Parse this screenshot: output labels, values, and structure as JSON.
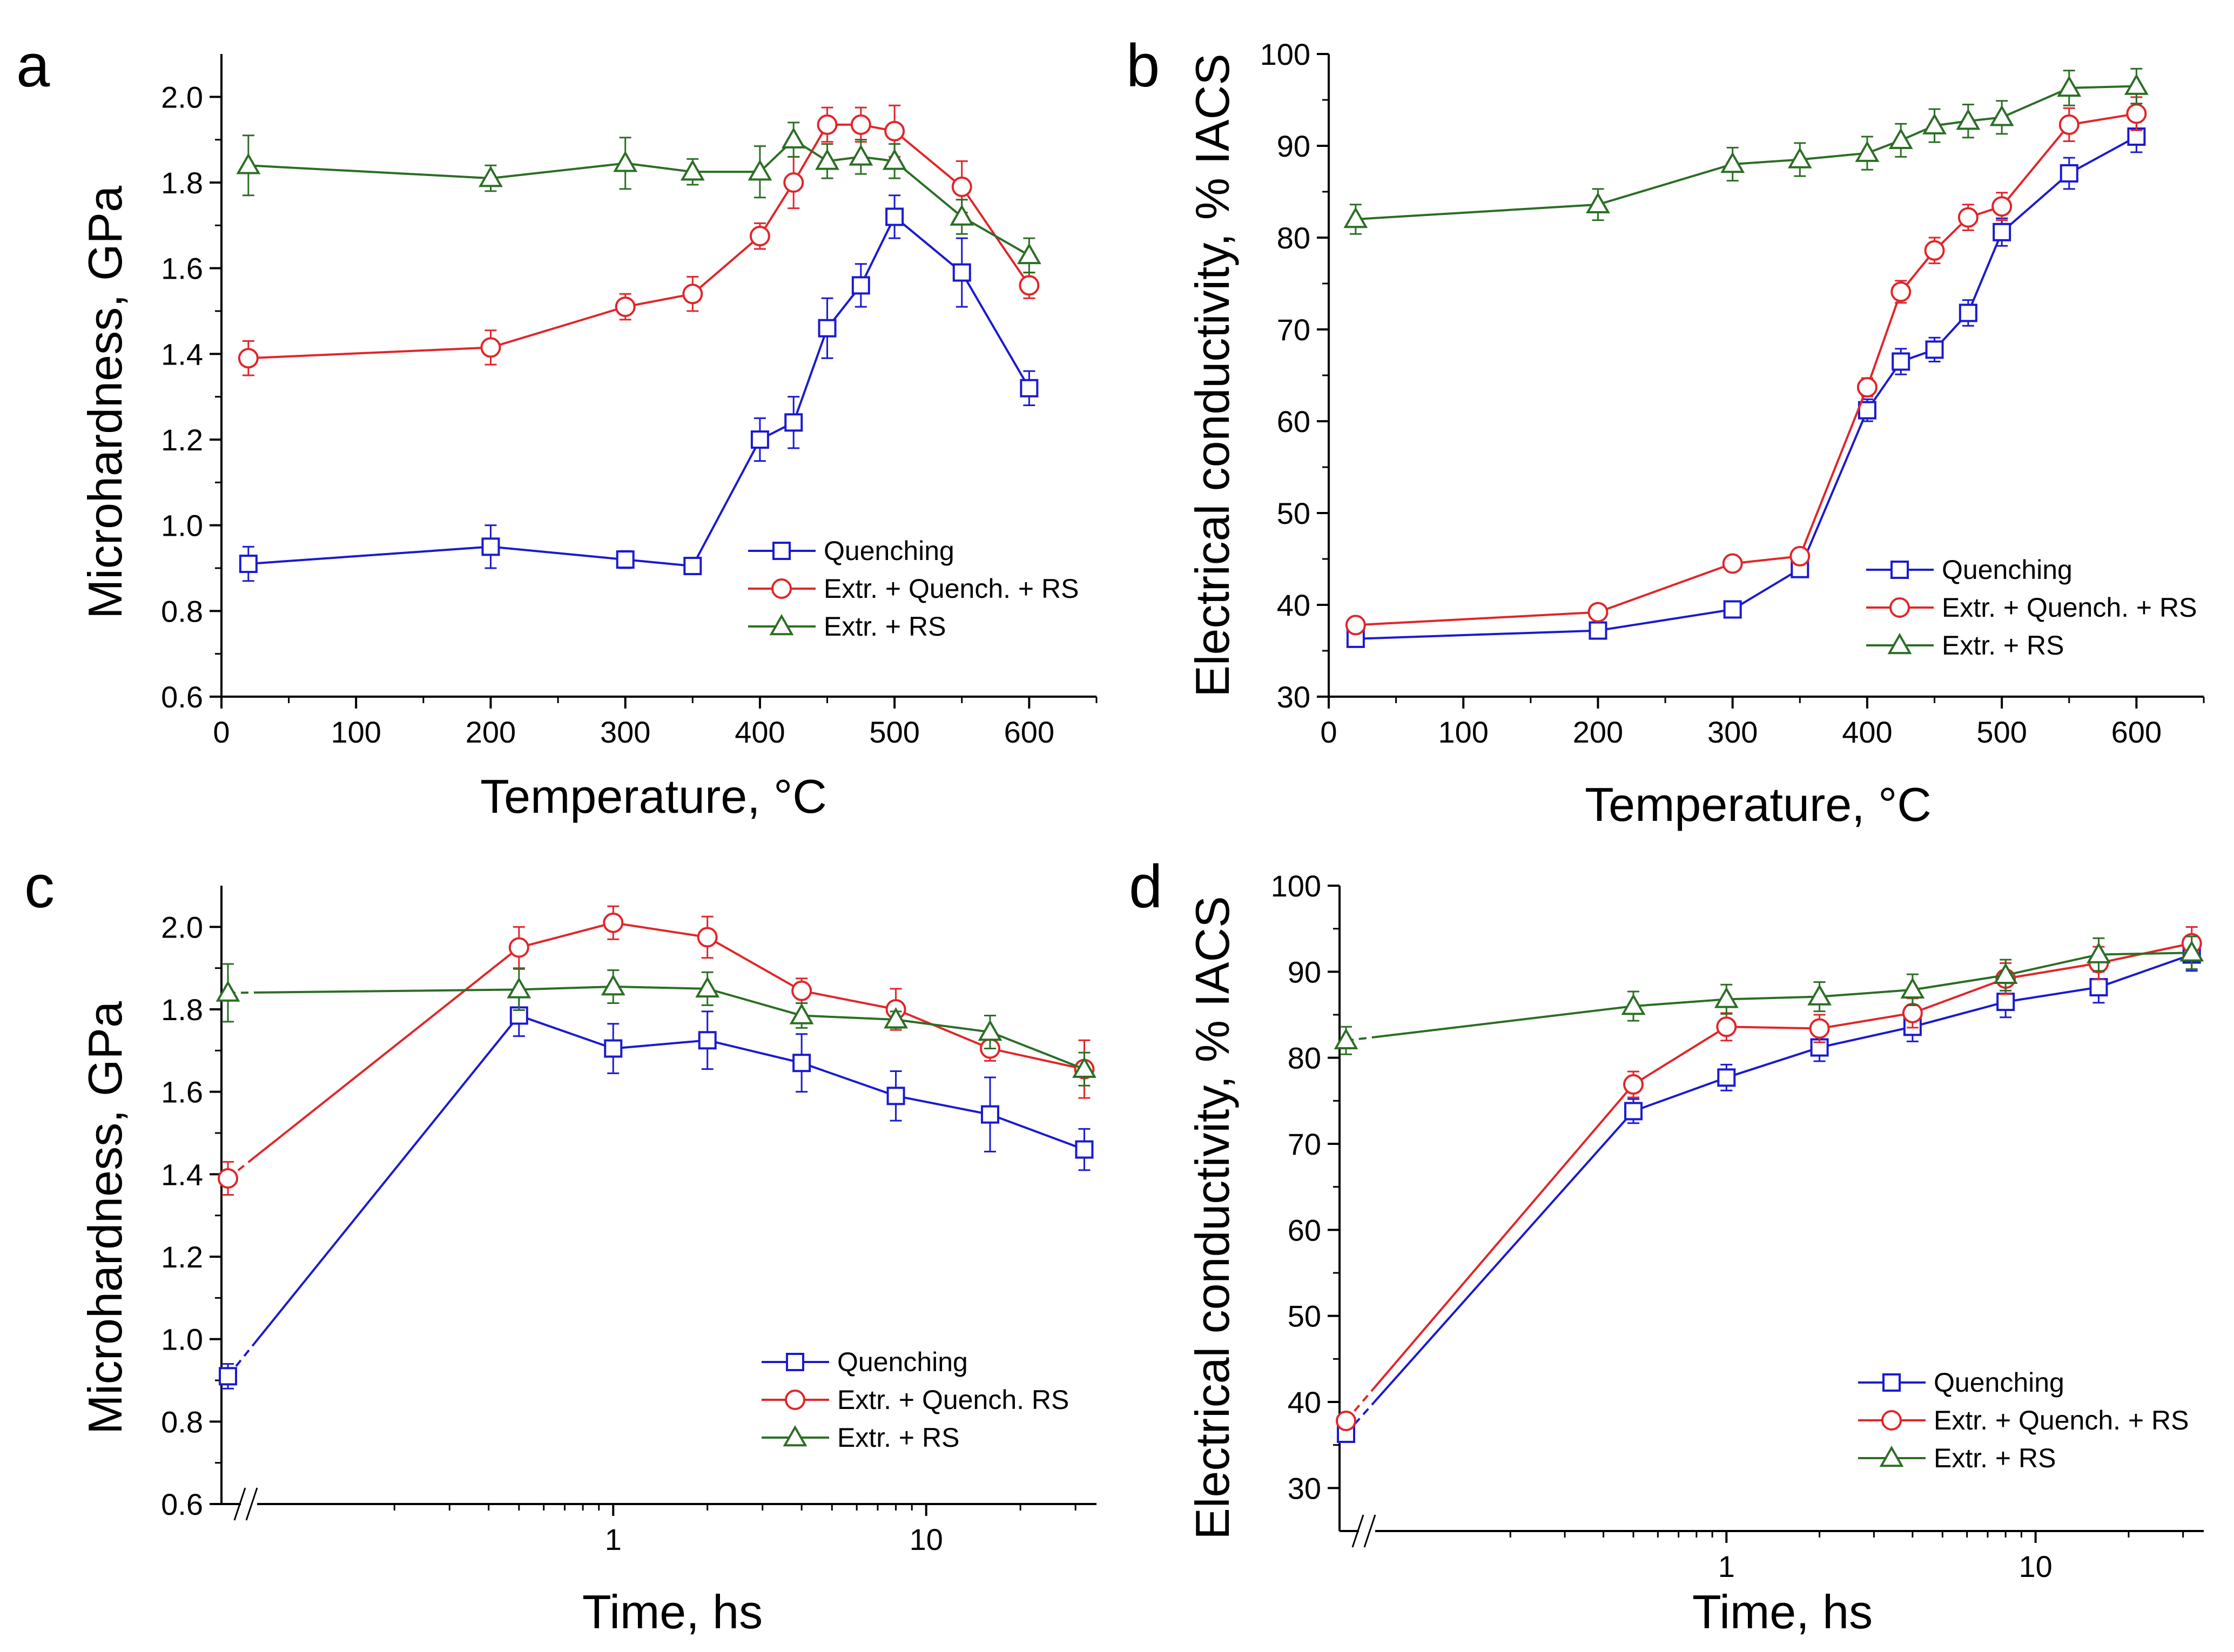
{
  "colors": {
    "quenching": "#1a1ad0",
    "extr_quench_rs": "#e0262a",
    "extr_rs": "#2b6e24",
    "axis": "#000000",
    "background": "#ffffff"
  },
  "chart_data": [
    {
      "panel": "a",
      "type": "line",
      "xscale": "linear",
      "xlabel": "Temperature, °C",
      "ylabel": "Microhardness, GPa",
      "xlim": [
        0,
        650
      ],
      "ylim": [
        0.6,
        2.1
      ],
      "xticks": [
        0,
        100,
        200,
        300,
        400,
        500,
        600
      ],
      "xtick_labels": [
        "0",
        "100",
        "200",
        "300",
        "400",
        "500",
        "600"
      ],
      "yticks": [
        0.6,
        0.8,
        1.0,
        1.2,
        1.4,
        1.6,
        1.8,
        2.0
      ],
      "ytick_labels": [
        "0.6",
        "0.8",
        "1.0",
        "1.2",
        "1.4",
        "1.6",
        "1.8",
        "2.0"
      ],
      "legend_position": "bottom-right",
      "series": [
        {
          "name": "Quenching",
          "key": "quenching",
          "marker": "square",
          "x": [
            20,
            200,
            300,
            350,
            400,
            425,
            450,
            475,
            500,
            550,
            600
          ],
          "y": [
            0.91,
            0.95,
            0.92,
            0.905,
            1.2,
            1.24,
            1.46,
            1.56,
            1.72,
            1.59,
            1.32
          ],
          "err": [
            0.04,
            0.05,
            0.02,
            0.01,
            0.05,
            0.06,
            0.07,
            0.05,
            0.05,
            0.08,
            0.04
          ]
        },
        {
          "name": "Extr. + Quench. + RS",
          "key": "extr_quench_rs",
          "marker": "circle",
          "x": [
            20,
            200,
            300,
            350,
            400,
            425,
            450,
            475,
            500,
            550,
            600
          ],
          "y": [
            1.39,
            1.415,
            1.51,
            1.54,
            1.675,
            1.8,
            1.935,
            1.935,
            1.92,
            1.79,
            1.56
          ],
          "err": [
            0.04,
            0.04,
            0.03,
            0.04,
            0.03,
            0.06,
            0.04,
            0.04,
            0.06,
            0.06,
            0.03
          ]
        },
        {
          "name": "Extr. + RS",
          "key": "extr_rs",
          "marker": "triangle",
          "x": [
            20,
            200,
            300,
            350,
            400,
            425,
            450,
            475,
            500,
            550,
            600
          ],
          "y": [
            1.84,
            1.81,
            1.845,
            1.825,
            1.825,
            1.9,
            1.85,
            1.86,
            1.85,
            1.72,
            1.63
          ],
          "err": [
            0.07,
            0.03,
            0.06,
            0.03,
            0.06,
            0.04,
            0.04,
            0.04,
            0.04,
            0.04,
            0.04
          ]
        }
      ]
    },
    {
      "panel": "b",
      "type": "line",
      "xscale": "linear",
      "xlabel": "Temperature, °C",
      "ylabel": "Electrical conductivity, % IACS",
      "xlim": [
        0,
        650
      ],
      "ylim": [
        30,
        100
      ],
      "xticks": [
        0,
        100,
        200,
        300,
        400,
        500,
        600
      ],
      "xtick_labels": [
        "0",
        "100",
        "200",
        "300",
        "400",
        "500",
        "600"
      ],
      "yticks": [
        30,
        40,
        50,
        60,
        70,
        80,
        90,
        100
      ],
      "ytick_labels": [
        "30",
        "40",
        "50",
        "60",
        "70",
        "80",
        "90",
        "100"
      ],
      "legend_position": "bottom-right",
      "series": [
        {
          "name": "Quenching",
          "key": "quenching",
          "marker": "square",
          "x": [
            20,
            200,
            300,
            350,
            400,
            425,
            450,
            475,
            500,
            550,
            600
          ],
          "y": [
            36.3,
            37.2,
            39.5,
            43.9,
            61.2,
            66.5,
            67.8,
            71.8,
            80.6,
            87.0,
            91.0
          ],
          "err": [
            0.6,
            0.6,
            0.6,
            0.7,
            1.2,
            1.4,
            1.3,
            1.4,
            1.5,
            1.7,
            1.7
          ]
        },
        {
          "name": "Extr. + Quench. + RS",
          "key": "extr_quench_rs",
          "marker": "circle",
          "x": [
            20,
            200,
            300,
            350,
            400,
            425,
            450,
            475,
            500,
            550,
            600
          ],
          "y": [
            37.8,
            39.2,
            44.5,
            45.3,
            63.7,
            74.1,
            78.6,
            82.2,
            83.4,
            92.3,
            93.5
          ],
          "err": [
            0.6,
            0.6,
            0.7,
            0.8,
            1.0,
            1.2,
            1.4,
            1.4,
            1.5,
            1.8,
            1.8
          ]
        },
        {
          "name": "Extr. + RS",
          "key": "extr_rs",
          "marker": "triangle",
          "x": [
            20,
            200,
            300,
            350,
            400,
            425,
            450,
            475,
            500,
            550,
            600
          ],
          "y": [
            82.0,
            83.6,
            88.0,
            88.5,
            89.2,
            90.6,
            92.2,
            92.7,
            93.1,
            96.3,
            96.5
          ],
          "err": [
            1.6,
            1.7,
            1.8,
            1.8,
            1.8,
            1.8,
            1.8,
            1.8,
            1.8,
            1.9,
            1.9
          ]
        }
      ]
    },
    {
      "panel": "c",
      "type": "line",
      "xscale": "log",
      "axis_break": true,
      "xlabel": "Time, hs",
      "ylabel": "Microhardness, GPa",
      "xlim": [
        0.1,
        35
      ],
      "ylim": [
        0.6,
        2.1
      ],
      "xticks": [
        1,
        10
      ],
      "xtick_labels": [
        "1",
        "10"
      ],
      "yticks": [
        0.6,
        0.8,
        1.0,
        1.2,
        1.4,
        1.6,
        1.8,
        2.0
      ],
      "ytick_labels": [
        "0.6",
        "0.8",
        "1.0",
        "1.2",
        "1.4",
        "1.6",
        "1.8",
        "2.0"
      ],
      "legend_position": "bottom-right",
      "series": [
        {
          "name": "Quenching",
          "key": "quenching",
          "marker": "square",
          "x0_value": 0.91,
          "x0_err": 0.03,
          "x": [
            0.5,
            1,
            2,
            4,
            8,
            16,
            32
          ],
          "y": [
            1.785,
            1.705,
            1.725,
            1.67,
            1.59,
            1.545,
            1.46
          ],
          "err": [
            0.05,
            0.06,
            0.07,
            0.07,
            0.06,
            0.09,
            0.05
          ]
        },
        {
          "name": "Extr. + Quench. RS",
          "key": "extr_quench_rs",
          "marker": "circle",
          "x0_value": 1.39,
          "x0_err": 0.04,
          "x": [
            0.5,
            1,
            2,
            4,
            8,
            16,
            32
          ],
          "y": [
            1.95,
            2.01,
            1.975,
            1.845,
            1.8,
            1.705,
            1.655
          ],
          "err": [
            0.05,
            0.04,
            0.05,
            0.03,
            0.05,
            0.03,
            0.07
          ]
        },
        {
          "name": "Extr. + RS",
          "key": "extr_rs",
          "marker": "triangle",
          "x0_value": 1.84,
          "x0_err": 0.07,
          "x": [
            0.5,
            1,
            2,
            4,
            8,
            16,
            32
          ],
          "y": [
            1.848,
            1.855,
            1.85,
            1.785,
            1.775,
            1.745,
            1.655
          ],
          "err": [
            0.05,
            0.04,
            0.04,
            0.03,
            0.02,
            0.04,
            0.04
          ]
        }
      ]
    },
    {
      "panel": "d",
      "type": "line",
      "xscale": "log",
      "axis_break": true,
      "xlabel": "Time, hs",
      "ylabel": "Electrical conductivity, % IACS",
      "xlim": [
        0.1,
        35
      ],
      "ylim": [
        25,
        100
      ],
      "xticks": [
        1,
        10
      ],
      "xtick_labels": [
        "1",
        "10"
      ],
      "yticks": [
        30,
        40,
        50,
        60,
        70,
        80,
        90,
        100
      ],
      "ytick_labels": [
        "30",
        "40",
        "50",
        "60",
        "70",
        "80",
        "90",
        "100"
      ],
      "legend_position": "bottom-right",
      "series": [
        {
          "name": "Quenching",
          "key": "quenching",
          "marker": "square",
          "x0_value": 36.3,
          "x0_err": 0.6,
          "x": [
            0.5,
            1,
            2,
            4,
            8,
            16,
            32
          ],
          "y": [
            73.8,
            77.7,
            81.2,
            83.6,
            86.5,
            88.2,
            92.0
          ],
          "err": [
            1.4,
            1.5,
            1.6,
            1.7,
            1.8,
            1.8,
            1.9
          ]
        },
        {
          "name": "Extr. + Quench. + RS",
          "key": "extr_quench_rs",
          "marker": "circle",
          "x0_value": 37.8,
          "x0_err": 0.6,
          "x": [
            0.5,
            1,
            2,
            4,
            8,
            16,
            32
          ],
          "y": [
            76.9,
            83.6,
            83.4,
            85.2,
            89.2,
            91.0,
            93.3
          ],
          "err": [
            1.5,
            1.6,
            1.6,
            1.7,
            1.8,
            1.9,
            1.9
          ]
        },
        {
          "name": "Extr. + RS",
          "key": "extr_rs",
          "marker": "triangle",
          "x0_value": 82.0,
          "x0_err": 1.6,
          "x": [
            0.5,
            1,
            2,
            4,
            8,
            16,
            32
          ],
          "y": [
            86.0,
            86.8,
            87.1,
            87.9,
            89.6,
            92.0,
            92.2
          ],
          "err": [
            1.7,
            1.7,
            1.7,
            1.8,
            1.8,
            1.9,
            1.9
          ]
        }
      ]
    }
  ]
}
